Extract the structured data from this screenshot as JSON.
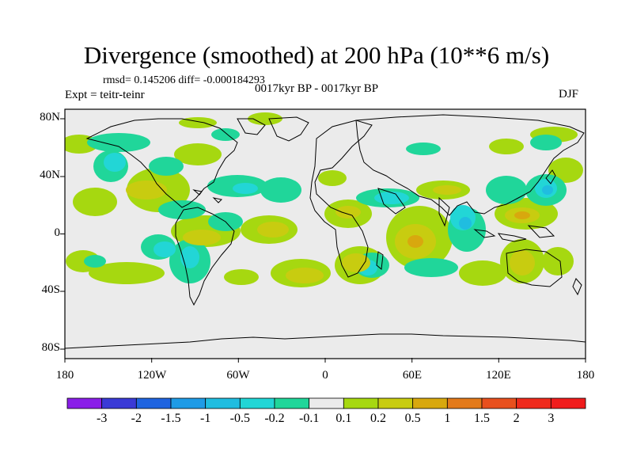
{
  "title": "Divergence (smoothed) at 200 hPa (10**6 m/s)",
  "stats": "rmsd= 0.145206 diff= -0.000184293",
  "experiment": "Expt = teitr-teinr",
  "period": "0017kyr BP - 0017kyr BP",
  "season": "DJF",
  "lat_labels": [
    "80N",
    "40N",
    "0",
    "40S",
    "80S"
  ],
  "lon_labels": [
    "180",
    "120W",
    "60W",
    "0",
    "60E",
    "120E",
    "180"
  ],
  "colorbar": {
    "labels": [
      "-3",
      "-2",
      "-1.5",
      "-1",
      "-0.5",
      "-0.2",
      "-0.1",
      "0.1",
      "0.2",
      "0.5",
      "1",
      "1.5",
      "2",
      "3"
    ],
    "colors": [
      "#8a1ee8",
      "#3a3ad6",
      "#1f64e0",
      "#1f9be6",
      "#20bde0",
      "#22d6d6",
      "#20d69a",
      "#ebebeb",
      "#a6d810",
      "#c8cc10",
      "#d8a80e",
      "#e37a1a",
      "#e8501e",
      "#ef2a1c",
      "#f01c1c"
    ]
  },
  "colors": {
    "background": "#ebebeb",
    "coast": "#000000"
  }
}
